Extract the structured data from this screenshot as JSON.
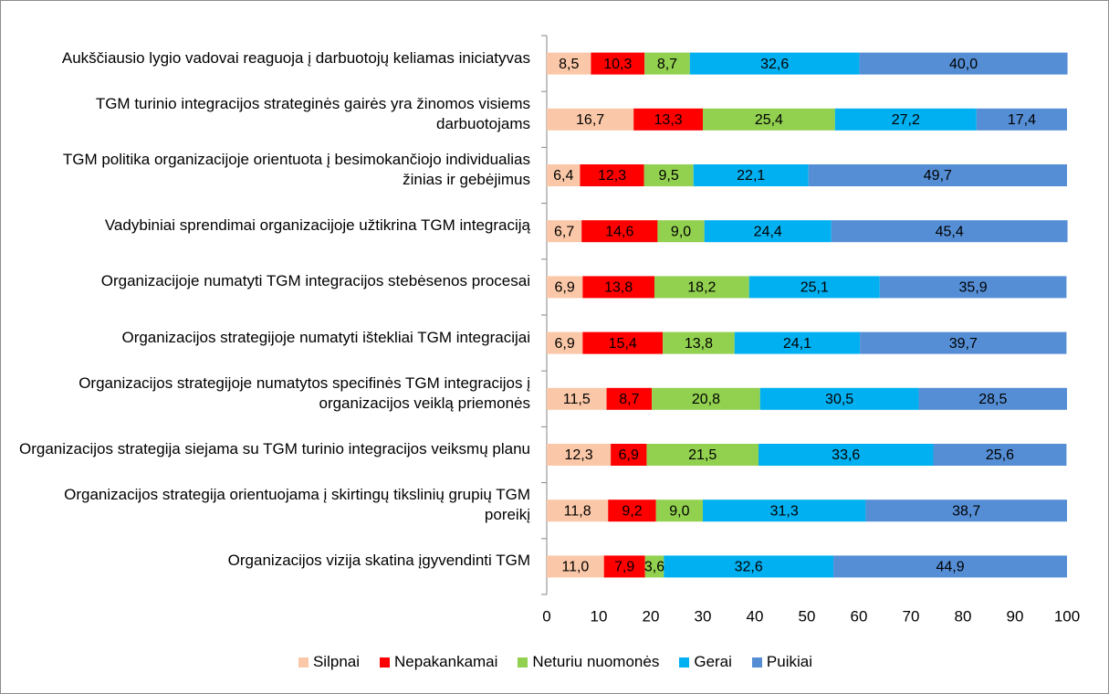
{
  "chart_data": {
    "type": "stacked_bar_horizontal",
    "categories": [
      "Aukščiausio lygio vadovai reaguoja į darbuotojų keliamas iniciatyvas",
      "TGM turinio integracijos strateginės gairės yra žinomos visiems darbuotojams",
      "TGM politika organizacijoje orientuota į besimokančiojo individualias žinias ir gebėjimus",
      "Vadybiniai sprendimai organizacijoje užtikrina TGM integraciją",
      "Organizacijoje numatyti TGM integracijos stebėsenos procesai",
      "Organizacijos strategijoje numatyti ištekliai TGM integracijai",
      "Organizacijos strategijoje numatytos specifinės TGM integracijos į organizacijos veiklą priemonės",
      "Organizacijos strategija siejama su TGM turinio integracijos veiksmų planu",
      "Organizacijos strategija orientuojama į skirtingų tikslinių grupių TGM poreikį",
      "Organizacijos vizija skatina įgyvendinti TGM"
    ],
    "series": [
      {
        "name": "Silpnai",
        "color": "#FAC8A8",
        "values": [
          8.5,
          16.7,
          6.4,
          6.7,
          6.9,
          6.9,
          11.5,
          12.3,
          11.8,
          11.0
        ],
        "value_labels": [
          "8,5",
          "16,7",
          "6,4",
          "6,7",
          "6,9",
          "6,9",
          "11,5",
          "12,3",
          "11,8",
          "11,0"
        ]
      },
      {
        "name": "Nepakankamai",
        "color": "#FF0000",
        "values": [
          10.3,
          13.3,
          12.3,
          14.6,
          13.8,
          15.4,
          8.7,
          6.9,
          9.2,
          7.9
        ],
        "value_labels": [
          "10,3",
          "13,3",
          "12,3",
          "14,6",
          "13,8",
          "15,4",
          "8,7",
          "6,9",
          "9,2",
          "7,9"
        ]
      },
      {
        "name": "Neturiu nuomonės",
        "color": "#92D050",
        "values": [
          8.7,
          25.4,
          9.5,
          9.0,
          18.2,
          13.8,
          20.8,
          21.5,
          9.0,
          3.6
        ],
        "value_labels": [
          "8,7",
          "25,4",
          "9,5",
          "9,0",
          "18,2",
          "13,8",
          "20,8",
          "21,5",
          "9,0",
          "3,6"
        ]
      },
      {
        "name": "Gerai",
        "color": "#00B0F0",
        "values": [
          32.6,
          27.2,
          22.1,
          24.4,
          25.1,
          24.1,
          30.5,
          33.6,
          31.3,
          32.6
        ],
        "value_labels": [
          "32,6",
          "27,2",
          "22,1",
          "24,4",
          "25,1",
          "24,1",
          "30,5",
          "33,6",
          "31,3",
          "32,6"
        ]
      },
      {
        "name": "Puikiai",
        "color": "#558ED5",
        "values": [
          40.0,
          17.4,
          49.7,
          45.4,
          35.9,
          39.7,
          28.5,
          25.6,
          38.7,
          44.9
        ],
        "value_labels": [
          "40,0",
          "17,4",
          "49,7",
          "45,4",
          "35,9",
          "39,7",
          "28,5",
          "25,6",
          "38,7",
          "44,9"
        ]
      }
    ],
    "xlim": [
      0,
      100
    ],
    "xticks": [
      0,
      10,
      20,
      30,
      40,
      50,
      60,
      70,
      80,
      90,
      100
    ],
    "legend": "bottom"
  }
}
